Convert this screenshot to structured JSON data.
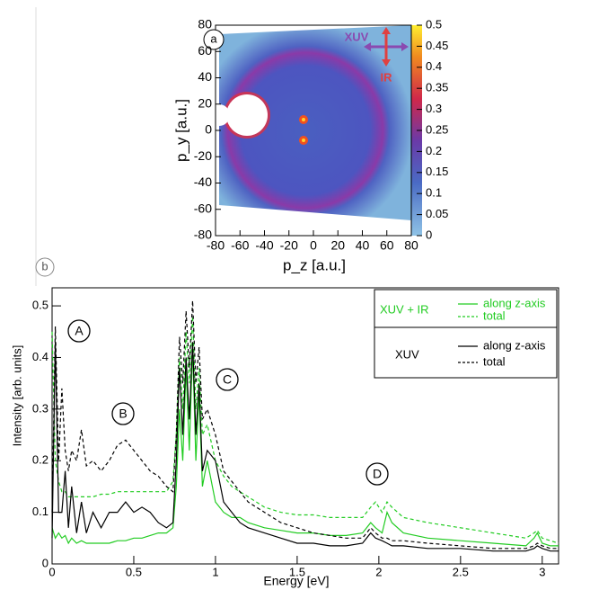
{
  "chart_data": [
    {
      "type": "heatmap",
      "panel_label": "a",
      "xlabel": "p_z [a.u.]",
      "ylabel": "p_y [a.u.]",
      "xlim": [
        -80,
        80
      ],
      "ylim": [
        -80,
        80
      ],
      "xticks": [
        -80,
        -60,
        -40,
        -20,
        0,
        20,
        40,
        60,
        80
      ],
      "yticks": [
        -80,
        -60,
        -40,
        -20,
        0,
        20,
        40,
        60,
        80
      ],
      "clim": [
        0,
        0.5
      ],
      "cticks": [
        0,
        0.05,
        0.1,
        0.15,
        0.2,
        0.25,
        0.3,
        0.35,
        0.4,
        0.45,
        0.5
      ],
      "annotations": [
        "XUV",
        "IR"
      ]
    },
    {
      "type": "line",
      "panel_label": "b",
      "xlabel": "Energy [eV]",
      "ylabel": "Intensity [arb. units]",
      "xlim": [
        0,
        3.1
      ],
      "ylim": [
        0,
        0.535
      ],
      "xticks": [
        0,
        0.5,
        1,
        1.5,
        2,
        2.5,
        3
      ],
      "yticks": [
        0,
        0.1,
        0.2,
        0.3,
        0.4,
        0.5
      ],
      "annotations": [
        "A",
        "B",
        "C",
        "D"
      ],
      "x": [
        0,
        0.02,
        0.04,
        0.06,
        0.08,
        0.1,
        0.12,
        0.15,
        0.18,
        0.21,
        0.25,
        0.3,
        0.35,
        0.4,
        0.45,
        0.5,
        0.55,
        0.6,
        0.65,
        0.7,
        0.74,
        0.76,
        0.78,
        0.8,
        0.82,
        0.84,
        0.86,
        0.88,
        0.9,
        0.92,
        0.95,
        1.0,
        1.05,
        1.1,
        1.15,
        1.2,
        1.3,
        1.4,
        1.5,
        1.6,
        1.7,
        1.8,
        1.9,
        1.95,
        1.98,
        2.02,
        2.05,
        2.08,
        2.15,
        2.3,
        2.5,
        2.7,
        2.9,
        2.95,
        2.97,
        3.0,
        3.05,
        3.1
      ],
      "series": [
        {
          "group": "XUV + IR",
          "name": "along z-axis",
          "color": "#22cc22",
          "dash": false,
          "values": [
            0.07,
            0.05,
            0.06,
            0.05,
            0.055,
            0.04,
            0.05,
            0.04,
            0.045,
            0.04,
            0.04,
            0.04,
            0.04,
            0.045,
            0.045,
            0.05,
            0.05,
            0.055,
            0.06,
            0.06,
            0.07,
            0.15,
            0.3,
            0.2,
            0.38,
            0.22,
            0.42,
            0.2,
            0.33,
            0.15,
            0.2,
            0.12,
            0.1,
            0.09,
            0.09,
            0.08,
            0.07,
            0.065,
            0.06,
            0.06,
            0.055,
            0.055,
            0.06,
            0.08,
            0.07,
            0.06,
            0.1,
            0.08,
            0.06,
            0.05,
            0.045,
            0.04,
            0.035,
            0.05,
            0.06,
            0.04,
            0.035,
            0.035
          ]
        },
        {
          "group": "XUV + IR",
          "name": "total",
          "color": "#22cc22",
          "dash": true,
          "values": [
            0.45,
            0.2,
            0.16,
            0.14,
            0.14,
            0.13,
            0.13,
            0.13,
            0.13,
            0.13,
            0.13,
            0.135,
            0.135,
            0.14,
            0.14,
            0.14,
            0.14,
            0.14,
            0.14,
            0.14,
            0.16,
            0.25,
            0.4,
            0.3,
            0.45,
            0.35,
            0.48,
            0.3,
            0.38,
            0.25,
            0.27,
            0.2,
            0.17,
            0.15,
            0.14,
            0.13,
            0.11,
            0.1,
            0.095,
            0.095,
            0.09,
            0.09,
            0.09,
            0.11,
            0.12,
            0.1,
            0.12,
            0.11,
            0.09,
            0.08,
            0.07,
            0.06,
            0.05,
            0.06,
            0.065,
            0.05,
            0.045,
            0.04
          ]
        },
        {
          "group": "XUV",
          "name": "along z-axis",
          "color": "#000000",
          "dash": false,
          "values": [
            0.05,
            0.43,
            0.1,
            0.1,
            0.18,
            0.07,
            0.15,
            0.06,
            0.12,
            0.06,
            0.1,
            0.07,
            0.1,
            0.1,
            0.12,
            0.1,
            0.11,
            0.1,
            0.08,
            0.07,
            0.08,
            0.2,
            0.38,
            0.25,
            0.4,
            0.28,
            0.43,
            0.25,
            0.35,
            0.18,
            0.22,
            0.2,
            0.12,
            0.1,
            0.08,
            0.07,
            0.06,
            0.05,
            0.04,
            0.04,
            0.035,
            0.035,
            0.04,
            0.06,
            0.05,
            0.045,
            0.04,
            0.035,
            0.035,
            0.03,
            0.03,
            0.025,
            0.025,
            0.03,
            0.035,
            0.03,
            0.025,
            0.025
          ]
        },
        {
          "group": "XUV",
          "name": "total",
          "color": "#000000",
          "dash": true,
          "values": [
            0.1,
            0.46,
            0.2,
            0.34,
            0.22,
            0.18,
            0.22,
            0.2,
            0.26,
            0.19,
            0.2,
            0.18,
            0.2,
            0.23,
            0.24,
            0.22,
            0.2,
            0.18,
            0.17,
            0.15,
            0.14,
            0.25,
            0.44,
            0.35,
            0.49,
            0.38,
            0.51,
            0.35,
            0.42,
            0.28,
            0.3,
            0.25,
            0.18,
            0.16,
            0.14,
            0.12,
            0.1,
            0.08,
            0.07,
            0.06,
            0.055,
            0.05,
            0.05,
            0.07,
            0.06,
            0.05,
            0.05,
            0.045,
            0.045,
            0.04,
            0.035,
            0.03,
            0.03,
            0.035,
            0.04,
            0.035,
            0.03,
            0.03
          ]
        }
      ]
    }
  ]
}
